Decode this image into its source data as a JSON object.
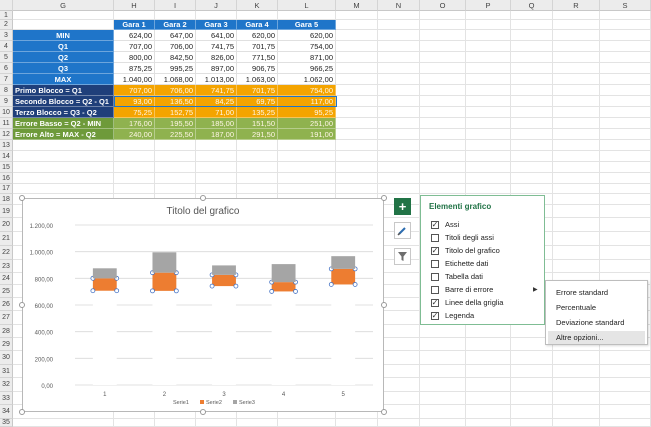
{
  "columns": [
    "G",
    "H",
    "I",
    "J",
    "K",
    "L",
    "M",
    "N",
    "O",
    "P",
    "Q",
    "R",
    "S"
  ],
  "rows": [
    "1",
    "2",
    "3",
    "4",
    "5",
    "6",
    "7",
    "8",
    "9",
    "10",
    "11",
    "12",
    "13",
    "14",
    "15",
    "16",
    "17",
    "18",
    "19",
    "20",
    "21",
    "22",
    "23",
    "24",
    "25",
    "26",
    "27",
    "28",
    "29",
    "30",
    "31",
    "32",
    "33",
    "34",
    "35"
  ],
  "table": {
    "headers": [
      "Gara 1",
      "Gara 2",
      "Gara 3",
      "Gara 4",
      "Gara 5"
    ],
    "stat_rows": [
      {
        "label": "MIN",
        "values": [
          "624,00",
          "647,00",
          "641,00",
          "620,00",
          "620,00"
        ]
      },
      {
        "label": "Q1",
        "values": [
          "707,00",
          "706,00",
          "741,75",
          "701,75",
          "754,00"
        ]
      },
      {
        "label": "Q2",
        "values": [
          "800,00",
          "842,50",
          "826,00",
          "771,50",
          "871,00"
        ]
      },
      {
        "label": "Q3",
        "values": [
          "875,25",
          "995,25",
          "897,00",
          "906,75",
          "966,25"
        ]
      },
      {
        "label": "MAX",
        "values": [
          "1.040,00",
          "1.068,00",
          "1.013,00",
          "1.063,00",
          "1.062,00"
        ]
      }
    ],
    "block_rows": [
      {
        "label": "Primo Blocco = Q1",
        "values": [
          "707,00",
          "706,00",
          "741,75",
          "701,75",
          "754,00"
        ]
      },
      {
        "label": "Secondo Blocco = Q2 - Q1",
        "values": [
          "93,00",
          "136,50",
          "84,25",
          "69,75",
          "117,00"
        ]
      },
      {
        "label": "Terzo Blocco = Q3 - Q2",
        "values": [
          "75,25",
          "152,75",
          "71,00",
          "135,25",
          "95,25"
        ]
      },
      {
        "label": "Errore Basso = Q2 - MIN",
        "values": [
          "176,00",
          "195,50",
          "185,00",
          "151,50",
          "251,00"
        ]
      },
      {
        "label": "Errore Alto = MAX - Q2",
        "values": [
          "240,00",
          "225,50",
          "187,00",
          "291,50",
          "191,00"
        ]
      }
    ]
  },
  "chart": {
    "title": "Titolo del grafico",
    "y_ticks": [
      "1.200,00",
      "1.000,00",
      "800,00",
      "600,00",
      "400,00",
      "200,00",
      "0,00"
    ],
    "legend": [
      "Serie1",
      "Serie2",
      "Serie3"
    ]
  },
  "chart_data": {
    "type": "bar",
    "stacked": true,
    "title": "Titolo del grafico",
    "categories": [
      "1",
      "2",
      "3",
      "4",
      "5"
    ],
    "series": [
      {
        "name": "Serie1",
        "values": [
          707,
          706,
          741.75,
          701.75,
          754
        ]
      },
      {
        "name": "Serie2",
        "values": [
          93,
          136.5,
          84.25,
          69.75,
          117
        ]
      },
      {
        "name": "Serie3",
        "values": [
          75.25,
          152.75,
          71,
          135.25,
          95.25
        ]
      }
    ],
    "ylim": [
      0,
      1200
    ],
    "grid": true,
    "legend_position": "bottom",
    "colors": {
      "Serie1": "#ffffff",
      "Serie2": "#ed7d31",
      "Serie3": "#a5a5a5"
    }
  },
  "panel": {
    "title": "Elementi grafico",
    "items": [
      {
        "label": "Assi",
        "checked": true
      },
      {
        "label": "Titoli degli assi",
        "checked": false
      },
      {
        "label": "Titolo del grafico",
        "checked": true
      },
      {
        "label": "Etichette dati",
        "checked": false
      },
      {
        "label": "Tabella dati",
        "checked": false
      },
      {
        "label": "Barre di errore",
        "checked": false
      },
      {
        "label": "Linee della griglia",
        "checked": true
      },
      {
        "label": "Legenda",
        "checked": true
      }
    ]
  },
  "submenu": {
    "items": [
      "Errore standard",
      "Percentuale",
      "Deviazione standard",
      "Altre opzioni..."
    ]
  },
  "side_buttons": [
    "plus-icon",
    "brush-icon",
    "filter-icon"
  ],
  "colors": {
    "header_blue": "#1f75c9",
    "block_navy": "#1f3f7a",
    "orange": "#f4a400",
    "green": "#8fb24f",
    "panel_green": "#217346"
  }
}
